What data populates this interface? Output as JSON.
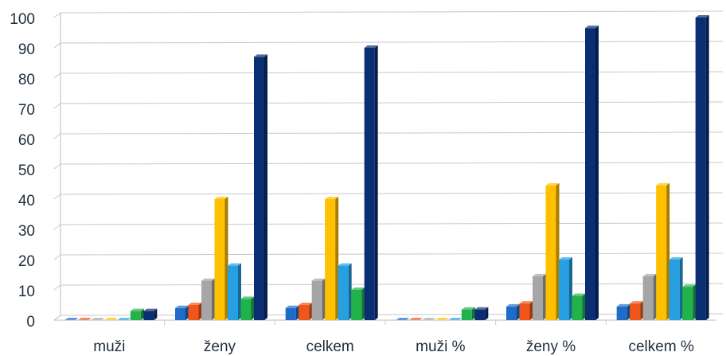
{
  "chart_data": {
    "type": "bar3d",
    "categories": [
      "muži",
      "ženy",
      "celkem",
      "muži %",
      "ženy %",
      "celkem %"
    ],
    "series": [
      {
        "color": "#1e6cc8",
        "values": [
          0,
          4,
          4,
          0,
          4.5,
          4.5
        ]
      },
      {
        "color": "#f0561a",
        "values": [
          0,
          5,
          5,
          0,
          5.5,
          5.5
        ]
      },
      {
        "color": "#a6a6a6",
        "values": [
          0,
          13,
          13,
          0,
          14.5,
          14.5
        ]
      },
      {
        "color": "#ffc000",
        "values": [
          0,
          40,
          40,
          0,
          44.5,
          44.5
        ]
      },
      {
        "color": "#26a0e0",
        "values": [
          0,
          18,
          18,
          0,
          20,
          20
        ]
      },
      {
        "color": "#21b24b",
        "values": [
          3,
          7,
          10,
          3.5,
          8,
          11
        ]
      },
      {
        "color": "#0b2d72",
        "values": [
          3,
          87,
          90,
          3.5,
          96.5,
          100
        ]
      }
    ],
    "ylim": [
      0,
      100
    ],
    "yticks": [
      0,
      10,
      20,
      30,
      40,
      50,
      60,
      70,
      80,
      90,
      100
    ],
    "grid": true
  }
}
